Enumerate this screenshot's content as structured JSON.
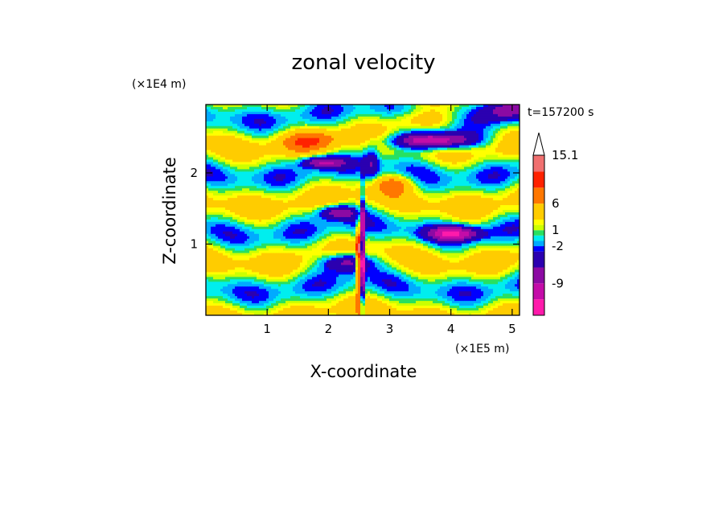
{
  "chart_data": {
    "type": "heatmap",
    "title": "zonal velocity",
    "xlabel": "X-coordinate",
    "ylabel": "Z-coordinate",
    "x_unit": "(×1E5 m)",
    "y_unit": "(×1E4 m)",
    "time_label": "t=157200 s",
    "x_range": [
      0,
      5.12
    ],
    "y_range": [
      0,
      2.96
    ],
    "x_ticks": [
      "1",
      "2",
      "3",
      "4",
      "5"
    ],
    "y_ticks": [
      "1",
      "2"
    ],
    "grid": false,
    "legend_placement": "right",
    "colorbar": {
      "levels": [
        -15,
        -12,
        -9,
        -6,
        -3,
        -2,
        -1,
        0,
        1,
        2,
        3,
        6,
        9,
        12,
        15.1
      ],
      "tick_labels": [
        "15.1",
        "6",
        "1",
        "-2",
        "-9"
      ],
      "tick_values": [
        15.1,
        6,
        1,
        -2,
        -9
      ],
      "colors": [
        "#ff1aab",
        "#c40ca8",
        "#8c0aa3",
        "#2b00b0",
        "#0000ff",
        "#00aaff",
        "#00eeee",
        "#28e060",
        "#ccff00",
        "#ffff00",
        "#ffcc00",
        "#ff7700",
        "#ff2200",
        "#f07070",
        "#ffc0cb"
      ],
      "extend_top": true
    }
  }
}
